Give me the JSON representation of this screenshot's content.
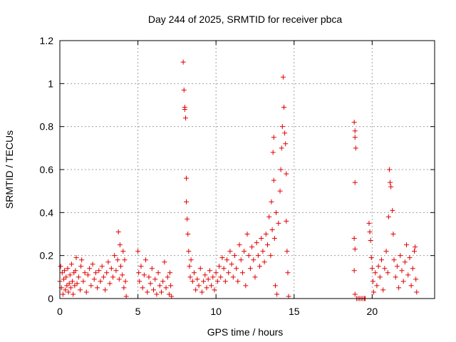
{
  "chart_data": {
    "type": "scatter",
    "title": "Day 244 of 2025, SRMTID for receiver pbca",
    "xlabel": "GPS time / hours",
    "ylabel": "SRMTID / TECUs",
    "xlim": [
      0,
      24
    ],
    "ylim": [
      0,
      1.2
    ],
    "grid": true,
    "marker": "plus",
    "marker_color": "#e00000",
    "x_ticks": [
      0,
      5,
      10,
      15,
      20
    ],
    "x_tick_labels": [
      "0",
      "5",
      "10",
      "15",
      "20"
    ],
    "y_ticks": [
      0,
      0.2,
      0.4,
      0.6,
      0.8,
      1,
      1.2
    ],
    "y_tick_labels": [
      "0",
      "0.2",
      "0.4",
      "0.6",
      "0.8",
      "1",
      "1.2"
    ],
    "series": [
      {
        "name": "pbca",
        "points": [
          [
            0.0,
            0.08
          ],
          [
            0.05,
            0.15
          ],
          [
            0.1,
            0.05
          ],
          [
            0.15,
            0.12
          ],
          [
            0.2,
            0.02
          ],
          [
            0.25,
            0.09
          ],
          [
            0.3,
            0.13
          ],
          [
            0.35,
            0.04
          ],
          [
            0.4,
            0.1
          ],
          [
            0.45,
            0.06
          ],
          [
            0.5,
            0.14
          ],
          [
            0.55,
            0.03
          ],
          [
            0.6,
            0.07
          ],
          [
            0.65,
            0.11
          ],
          [
            0.7,
            0.05
          ],
          [
            0.75,
            0.16
          ],
          [
            0.8,
            0.08
          ],
          [
            0.85,
            0.02
          ],
          [
            0.9,
            0.12
          ],
          [
            0.95,
            0.06
          ],
          [
            1.0,
            0.13
          ],
          [
            1.05,
            0.19
          ],
          [
            1.1,
            0.07
          ],
          [
            1.2,
            0.1
          ],
          [
            1.3,
            0.04
          ],
          [
            1.35,
            0.15
          ],
          [
            1.4,
            0.18
          ],
          [
            1.5,
            0.08
          ],
          [
            1.6,
            0.12
          ],
          [
            1.7,
            0.03
          ],
          [
            1.8,
            0.11
          ],
          [
            1.9,
            0.14
          ],
          [
            2.0,
            0.06
          ],
          [
            2.1,
            0.16
          ],
          [
            2.2,
            0.09
          ],
          [
            2.3,
            0.12
          ],
          [
            2.4,
            0.05
          ],
          [
            2.5,
            0.13
          ],
          [
            2.6,
            0.08
          ],
          [
            2.7,
            0.15
          ],
          [
            2.8,
            0.1
          ],
          [
            2.9,
            0.04
          ],
          [
            3.0,
            0.12
          ],
          [
            3.1,
            0.17
          ],
          [
            3.2,
            0.07
          ],
          [
            3.3,
            0.14
          ],
          [
            3.4,
            0.1
          ],
          [
            3.5,
            0.2
          ],
          [
            3.6,
            0.13
          ],
          [
            3.7,
            0.18
          ],
          [
            3.75,
            0.31
          ],
          [
            3.8,
            0.09
          ],
          [
            3.85,
            0.25
          ],
          [
            3.9,
            0.15
          ],
          [
            4.0,
            0.11
          ],
          [
            4.05,
            0.22
          ],
          [
            4.1,
            0.05
          ],
          [
            4.15,
            0.18
          ],
          [
            4.2,
            0.08
          ],
          [
            4.25,
            0.01
          ],
          [
            5.0,
            0.22
          ],
          [
            5.05,
            0.12
          ],
          [
            5.1,
            0.08
          ],
          [
            5.2,
            0.15
          ],
          [
            5.3,
            0.05
          ],
          [
            5.4,
            0.11
          ],
          [
            5.5,
            0.18
          ],
          [
            5.6,
            0.03
          ],
          [
            5.7,
            0.1
          ],
          [
            5.8,
            0.07
          ],
          [
            5.9,
            0.14
          ],
          [
            6.0,
            0.04
          ],
          [
            6.1,
            0.09
          ],
          [
            6.2,
            0.02
          ],
          [
            6.3,
            0.12
          ],
          [
            6.4,
            0.06
          ],
          [
            6.5,
            0.03
          ],
          [
            6.6,
            0.08
          ],
          [
            6.7,
            0.17
          ],
          [
            6.8,
            0.05
          ],
          [
            6.9,
            0.1
          ],
          [
            7.0,
            0.02
          ],
          [
            7.05,
            0.12
          ],
          [
            7.1,
            0.06
          ],
          [
            7.15,
            0.01
          ],
          [
            7.9,
            1.1
          ],
          [
            7.95,
            0.97
          ],
          [
            8.0,
            0.89
          ],
          [
            8.0,
            0.88
          ],
          [
            8.05,
            0.84
          ],
          [
            8.1,
            0.56
          ],
          [
            8.1,
            0.45
          ],
          [
            8.15,
            0.37
          ],
          [
            8.2,
            0.3
          ],
          [
            8.25,
            0.22
          ],
          [
            8.3,
            0.15
          ],
          [
            8.35,
            0.1
          ],
          [
            8.4,
            0.18
          ],
          [
            8.5,
            0.08
          ],
          [
            8.6,
            0.12
          ],
          [
            8.7,
            0.04
          ],
          [
            8.8,
            0.09
          ],
          [
            8.9,
            0.06
          ],
          [
            9.0,
            0.14
          ],
          [
            9.1,
            0.03
          ],
          [
            9.2,
            0.08
          ],
          [
            9.3,
            0.11
          ],
          [
            9.4,
            0.05
          ],
          [
            9.5,
            0.09
          ],
          [
            9.6,
            0.13
          ],
          [
            9.7,
            0.06
          ],
          [
            9.8,
            0.1
          ],
          [
            9.9,
            0.04
          ],
          [
            10.0,
            0.12
          ],
          [
            10.1,
            0.08
          ],
          [
            10.2,
            0.15
          ],
          [
            10.3,
            0.1
          ],
          [
            10.4,
            0.19
          ],
          [
            10.5,
            0.14
          ],
          [
            10.6,
            0.08
          ],
          [
            10.7,
            0.18
          ],
          [
            10.8,
            0.12
          ],
          [
            10.9,
            0.22
          ],
          [
            11.0,
            0.16
          ],
          [
            11.1,
            0.1
          ],
          [
            11.2,
            0.2
          ],
          [
            11.3,
            0.14
          ],
          [
            11.4,
            0.08
          ],
          [
            11.5,
            0.25
          ],
          [
            11.6,
            0.18
          ],
          [
            11.7,
            0.12
          ],
          [
            11.8,
            0.22
          ],
          [
            11.9,
            0.06
          ],
          [
            12.0,
            0.3
          ],
          [
            12.1,
            0.2
          ],
          [
            12.2,
            0.14
          ],
          [
            12.3,
            0.24
          ],
          [
            12.4,
            0.18
          ],
          [
            12.5,
            0.1
          ],
          [
            12.6,
            0.26
          ],
          [
            12.7,
            0.2
          ],
          [
            12.8,
            0.15
          ],
          [
            12.9,
            0.28
          ],
          [
            13.0,
            0.22
          ],
          [
            13.1,
            0.17
          ],
          [
            13.2,
            0.3
          ],
          [
            13.3,
            0.25
          ],
          [
            13.4,
            0.38
          ],
          [
            13.5,
            0.2
          ],
          [
            13.55,
            0.45
          ],
          [
            13.6,
            0.32
          ],
          [
            13.65,
            0.68
          ],
          [
            13.7,
            0.75
          ],
          [
            13.7,
            0.55
          ],
          [
            13.75,
            0.28
          ],
          [
            13.8,
            0.06
          ],
          [
            13.85,
            0.4
          ],
          [
            13.9,
            0.02
          ],
          [
            14.0,
            0.35
          ],
          [
            14.1,
            0.5
          ],
          [
            14.15,
            0.6
          ],
          [
            14.2,
            0.7
          ],
          [
            14.25,
            0.8
          ],
          [
            14.3,
            1.03
          ],
          [
            14.35,
            0.89
          ],
          [
            14.4,
            0.77
          ],
          [
            14.45,
            0.72
          ],
          [
            14.5,
            0.58
          ],
          [
            14.5,
            0.36
          ],
          [
            14.55,
            0.22
          ],
          [
            14.6,
            0.12
          ],
          [
            14.65,
            0.01
          ],
          [
            18.85,
            0.82
          ],
          [
            18.9,
            0.78
          ],
          [
            18.9,
            0.75
          ],
          [
            18.95,
            0.7
          ],
          [
            18.9,
            0.54
          ],
          [
            18.85,
            0.28
          ],
          [
            18.9,
            0.23
          ],
          [
            18.85,
            0.13
          ],
          [
            18.9,
            0.02
          ],
          [
            19.0,
            0.0
          ],
          [
            19.1,
            0.0
          ],
          [
            19.2,
            0.0
          ],
          [
            19.3,
            0.0
          ],
          [
            19.4,
            0.0
          ],
          [
            19.5,
            0.0
          ],
          [
            19.55,
            0.0
          ],
          [
            19.8,
            0.35
          ],
          [
            19.85,
            0.31
          ],
          [
            19.9,
            0.27
          ],
          [
            19.95,
            0.19
          ],
          [
            20.0,
            0.14
          ],
          [
            20.05,
            0.08
          ],
          [
            20.1,
            0.03
          ],
          [
            20.2,
            0.12
          ],
          [
            20.3,
            0.06
          ],
          [
            20.4,
            0.15
          ],
          [
            20.5,
            0.1
          ],
          [
            20.6,
            0.18
          ],
          [
            20.7,
            0.04
          ],
          [
            20.8,
            0.14
          ],
          [
            20.9,
            0.22
          ],
          [
            21.0,
            0.12
          ],
          [
            21.05,
            0.38
          ],
          [
            21.1,
            0.6
          ],
          [
            21.15,
            0.54
          ],
          [
            21.2,
            0.52
          ],
          [
            21.3,
            0.41
          ],
          [
            21.35,
            0.3
          ],
          [
            21.4,
            0.18
          ],
          [
            21.5,
            0.1
          ],
          [
            21.6,
            0.15
          ],
          [
            21.7,
            0.05
          ],
          [
            21.8,
            0.2
          ],
          [
            21.9,
            0.13
          ],
          [
            22.0,
            0.08
          ],
          [
            22.1,
            0.17
          ],
          [
            22.2,
            0.25
          ],
          [
            22.3,
            0.11
          ],
          [
            22.4,
            0.19
          ],
          [
            22.5,
            0.06
          ],
          [
            22.6,
            0.14
          ],
          [
            22.7,
            0.22
          ],
          [
            22.75,
            0.24
          ],
          [
            22.8,
            0.09
          ],
          [
            22.85,
            0.03
          ]
        ]
      }
    ]
  }
}
